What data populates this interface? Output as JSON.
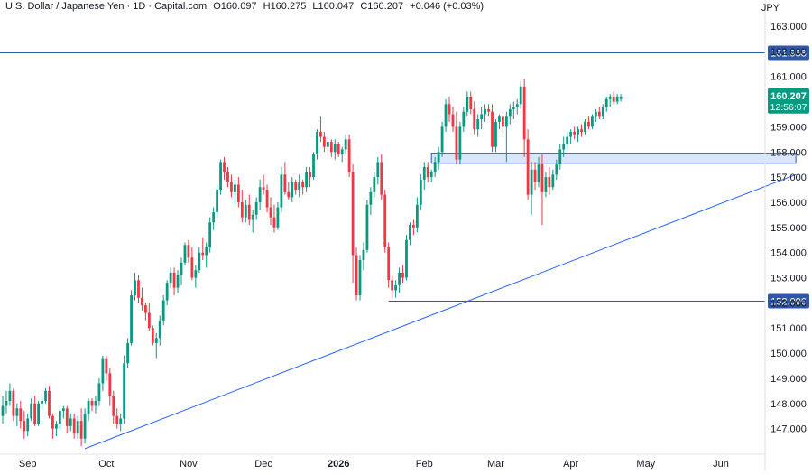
{
  "header": {
    "symbol": "U.S. Dollar / Japanese Yen · 1D · Capital.com",
    "open": "O160.097",
    "high": "H160.275",
    "low": "L160.047",
    "close": "C160.207",
    "change": "+0.046 (+0.03%)",
    "currency": "JPY"
  },
  "colors": {
    "up": "#089981",
    "down": "#f23645",
    "line": "#2962ff",
    "label_line": "#2f56a8",
    "zone_fill": "#dce6fb",
    "zone_stroke": "#2f56a8",
    "price_label": "#089981"
  },
  "price_tag": {
    "value": "160.207",
    "countdown": "12:56:07"
  },
  "chart_data": {
    "type": "candlestick",
    "ylim": [
      146.0,
      163.5
    ],
    "y_ticks": [
      "163.000",
      "162.000",
      "161.000",
      "160.000",
      "159.000",
      "158.000",
      "157.000",
      "156.000",
      "155.000",
      "154.000",
      "153.000",
      "152.000",
      "151.000",
      "150.000",
      "149.000",
      "148.000",
      "147.000"
    ],
    "x_ticks": [
      {
        "label": "Sep",
        "bar": 7
      },
      {
        "label": "Oct",
        "bar": 29
      },
      {
        "label": "Nov",
        "bar": 52
      },
      {
        "label": "Dec",
        "bar": 73
      },
      {
        "label": "2026",
        "bar": 94,
        "bold": true
      },
      {
        "label": "Feb",
        "bar": 118
      },
      {
        "label": "Mar",
        "bar": 138
      },
      {
        "label": "Apr",
        "bar": 159
      },
      {
        "label": "May",
        "bar": 180
      },
      {
        "label": "Jun",
        "bar": 201
      }
    ],
    "levels": [
      {
        "name": "resistance",
        "value": 161.958,
        "label": "161.958"
      },
      {
        "name": "support",
        "value": 152.096,
        "label": "152.096"
      }
    ],
    "zone": {
      "from_bar": 120,
      "to_bar": 222,
      "low": 157.55,
      "high": 157.95
    },
    "trendline": {
      "from_bar": 23,
      "from_value": 146.2,
      "to_bar": 222,
      "to_value": 157.1
    },
    "last_value": 160.207,
    "ohlc": [
      [
        147.5,
        148.3,
        147.2,
        147.9
      ],
      [
        147.9,
        148.5,
        147.6,
        148.1
      ],
      [
        148.1,
        148.8,
        147.9,
        148.5
      ],
      [
        148.5,
        148.6,
        147.3,
        147.5
      ],
      [
        147.5,
        148.0,
        147.1,
        147.8
      ],
      [
        147.8,
        148.1,
        147.0,
        147.3
      ],
      [
        147.3,
        147.7,
        146.6,
        146.9
      ],
      [
        146.9,
        147.6,
        146.7,
        147.4
      ],
      [
        147.4,
        148.2,
        147.3,
        148.0
      ],
      [
        148.0,
        148.3,
        147.1,
        147.2
      ],
      [
        147.2,
        148.1,
        147.1,
        148.0
      ],
      [
        148.0,
        148.3,
        147.8,
        148.1
      ],
      [
        148.1,
        148.6,
        148.0,
        148.5
      ],
      [
        148.5,
        148.7,
        147.4,
        147.5
      ],
      [
        147.5,
        147.6,
        146.6,
        147.0
      ],
      [
        147.0,
        147.3,
        146.7,
        147.2
      ],
      [
        147.2,
        147.8,
        147.0,
        147.7
      ],
      [
        147.7,
        147.9,
        147.4,
        147.8
      ],
      [
        147.8,
        147.9,
        146.8,
        147.1
      ],
      [
        147.1,
        147.6,
        146.9,
        147.4
      ],
      [
        147.4,
        147.6,
        146.6,
        146.8
      ],
      [
        146.8,
        147.5,
        146.6,
        147.3
      ],
      [
        147.3,
        147.8,
        146.3,
        146.6
      ],
      [
        146.6,
        147.8,
        146.4,
        147.6
      ],
      [
        147.6,
        148.2,
        147.3,
        148.1
      ],
      [
        148.1,
        148.2,
        147.7,
        147.9
      ],
      [
        147.9,
        148.3,
        147.6,
        148.1
      ],
      [
        148.1,
        149.0,
        147.9,
        148.8
      ],
      [
        148.8,
        149.9,
        148.5,
        149.8
      ],
      [
        149.8,
        149.9,
        148.9,
        149.2
      ],
      [
        149.2,
        149.4,
        147.9,
        148.3
      ],
      [
        148.3,
        148.5,
        147.2,
        147.5
      ],
      [
        147.5,
        147.8,
        147.0,
        147.2
      ],
      [
        147.2,
        147.6,
        146.9,
        147.4
      ],
      [
        147.4,
        149.9,
        147.2,
        149.6
      ],
      [
        149.6,
        150.6,
        149.4,
        150.4
      ],
      [
        150.4,
        152.5,
        150.3,
        152.3
      ],
      [
        152.3,
        153.2,
        152.1,
        152.9
      ],
      [
        152.9,
        153.1,
        152.0,
        152.2
      ],
      [
        152.2,
        152.6,
        151.7,
        151.9
      ],
      [
        151.9,
        152.0,
        151.3,
        151.6
      ],
      [
        151.6,
        152.0,
        150.9,
        151.0
      ],
      [
        151.0,
        151.1,
        150.3,
        150.4
      ],
      [
        150.4,
        150.8,
        149.8,
        150.6
      ],
      [
        150.6,
        151.5,
        150.3,
        151.3
      ],
      [
        151.3,
        152.3,
        151.1,
        152.1
      ],
      [
        152.1,
        152.9,
        151.9,
        152.8
      ],
      [
        152.8,
        153.4,
        152.6,
        153.2
      ],
      [
        153.2,
        153.4,
        152.3,
        152.6
      ],
      [
        152.6,
        153.3,
        152.4,
        153.1
      ],
      [
        153.1,
        153.8,
        152.7,
        153.6
      ],
      [
        153.6,
        154.4,
        153.5,
        154.3
      ],
      [
        154.3,
        154.5,
        153.6,
        153.8
      ],
      [
        153.8,
        154.2,
        152.9,
        153.0
      ],
      [
        153.0,
        153.5,
        152.6,
        153.3
      ],
      [
        153.3,
        154.2,
        153.2,
        154.0
      ],
      [
        154.0,
        154.6,
        153.7,
        153.9
      ],
      [
        153.9,
        154.4,
        153.4,
        154.2
      ],
      [
        154.2,
        155.4,
        154.0,
        155.2
      ],
      [
        155.2,
        155.8,
        154.9,
        155.6
      ],
      [
        155.6,
        156.7,
        155.4,
        156.5
      ],
      [
        156.5,
        157.7,
        156.3,
        157.6
      ],
      [
        157.6,
        157.8,
        156.9,
        157.2
      ],
      [
        157.2,
        157.4,
        156.6,
        156.8
      ],
      [
        156.8,
        157.1,
        156.2,
        156.4
      ],
      [
        156.4,
        156.9,
        155.9,
        156.7
      ],
      [
        156.7,
        157.0,
        155.8,
        156.0
      ],
      [
        156.0,
        156.5,
        155.2,
        155.4
      ],
      [
        155.4,
        156.1,
        155.2,
        155.9
      ],
      [
        155.9,
        156.3,
        155.1,
        155.3
      ],
      [
        155.3,
        155.7,
        154.8,
        155.5
      ],
      [
        155.5,
        156.2,
        155.3,
        156.0
      ],
      [
        156.0,
        156.9,
        155.7,
        156.6
      ],
      [
        156.6,
        157.1,
        156.3,
        156.5
      ],
      [
        156.5,
        156.7,
        155.6,
        155.8
      ],
      [
        155.8,
        156.2,
        155.1,
        155.4
      ],
      [
        155.4,
        155.9,
        154.8,
        155.0
      ],
      [
        155.0,
        156.0,
        154.9,
        155.8
      ],
      [
        155.8,
        157.4,
        155.6,
        157.1
      ],
      [
        157.1,
        157.6,
        156.3,
        156.4
      ],
      [
        156.4,
        156.8,
        156.1,
        156.2
      ],
      [
        156.2,
        157.0,
        156.0,
        156.8
      ],
      [
        156.8,
        156.9,
        156.3,
        156.5
      ],
      [
        156.5,
        157.1,
        156.2,
        156.8
      ],
      [
        156.8,
        156.9,
        156.3,
        156.6
      ],
      [
        156.6,
        157.4,
        156.4,
        157.2
      ],
      [
        157.2,
        157.4,
        156.6,
        157.0
      ],
      [
        157.0,
        158.0,
        156.9,
        157.9
      ],
      [
        157.9,
        158.9,
        157.7,
        158.8
      ],
      [
        158.8,
        159.4,
        158.4,
        158.6
      ],
      [
        158.6,
        158.8,
        158.0,
        158.2
      ],
      [
        158.2,
        158.6,
        157.9,
        158.4
      ],
      [
        158.4,
        158.5,
        157.8,
        158.0
      ],
      [
        158.0,
        158.5,
        157.7,
        158.3
      ],
      [
        158.3,
        158.4,
        157.8,
        157.9
      ],
      [
        157.9,
        158.2,
        157.6,
        158.1
      ],
      [
        158.1,
        158.7,
        157.9,
        158.5
      ],
      [
        158.5,
        158.7,
        157.0,
        157.2
      ],
      [
        157.2,
        157.5,
        152.8,
        153.9
      ],
      [
        153.9,
        154.2,
        152.1,
        152.3
      ],
      [
        152.3,
        153.9,
        152.1,
        153.7
      ],
      [
        153.7,
        154.4,
        153.3,
        154.1
      ],
      [
        154.1,
        156.1,
        154.0,
        155.9
      ],
      [
        155.9,
        156.6,
        155.5,
        156.4
      ],
      [
        156.4,
        157.2,
        156.2,
        157.0
      ],
      [
        157.0,
        157.8,
        156.7,
        157.6
      ],
      [
        157.6,
        157.9,
        156.1,
        156.3
      ],
      [
        156.3,
        156.5,
        154.0,
        154.2
      ],
      [
        154.2,
        154.4,
        152.6,
        152.9
      ],
      [
        152.9,
        153.1,
        152.2,
        152.5
      ],
      [
        152.5,
        152.9,
        152.2,
        152.7
      ],
      [
        152.7,
        153.4,
        152.4,
        153.2
      ],
      [
        153.2,
        153.5,
        152.8,
        153.0
      ],
      [
        153.0,
        154.7,
        152.9,
        154.5
      ],
      [
        154.5,
        155.2,
        154.3,
        155.1
      ],
      [
        155.1,
        155.3,
        154.7,
        155.0
      ],
      [
        155.0,
        156.2,
        154.8,
        155.9
      ],
      [
        155.9,
        157.1,
        155.7,
        156.9
      ],
      [
        156.9,
        157.6,
        156.5,
        157.4
      ],
      [
        157.4,
        157.6,
        156.8,
        157.0
      ],
      [
        157.0,
        157.3,
        156.8,
        157.2
      ],
      [
        157.2,
        157.8,
        157.0,
        157.6
      ],
      [
        157.6,
        158.2,
        157.3,
        158.0
      ],
      [
        158.0,
        159.2,
        157.8,
        159.0
      ],
      [
        159.0,
        160.1,
        158.8,
        159.9
      ],
      [
        159.9,
        160.2,
        159.2,
        159.5
      ],
      [
        159.5,
        159.8,
        158.8,
        159.0
      ],
      [
        159.0,
        159.6,
        157.5,
        157.7
      ],
      [
        157.7,
        159.2,
        157.5,
        159.0
      ],
      [
        159.0,
        159.8,
        158.8,
        159.6
      ],
      [
        159.6,
        160.4,
        159.4,
        160.2
      ],
      [
        160.2,
        160.4,
        159.5,
        159.7
      ],
      [
        159.7,
        160.0,
        158.7,
        158.9
      ],
      [
        158.9,
        159.5,
        158.6,
        159.3
      ],
      [
        159.3,
        159.8,
        158.9,
        159.5
      ],
      [
        159.5,
        159.9,
        159.2,
        159.7
      ],
      [
        159.7,
        159.9,
        159.4,
        159.6
      ],
      [
        159.6,
        159.9,
        158.0,
        158.2
      ],
      [
        158.2,
        159.3,
        158.0,
        159.2
      ],
      [
        159.2,
        159.5,
        158.9,
        159.4
      ],
      [
        159.4,
        159.6,
        158.8,
        159.0
      ],
      [
        159.0,
        159.6,
        157.6,
        159.4
      ],
      [
        159.4,
        159.9,
        159.1,
        159.7
      ],
      [
        159.7,
        160.0,
        159.3,
        159.8
      ],
      [
        159.8,
        160.1,
        159.5,
        159.9
      ],
      [
        159.9,
        160.8,
        159.7,
        160.6
      ],
      [
        160.6,
        160.9,
        157.8,
        158.5
      ],
      [
        158.5,
        158.9,
        156.1,
        156.3
      ],
      [
        156.3,
        157.6,
        155.5,
        157.3
      ],
      [
        157.3,
        157.6,
        156.5,
        156.8
      ],
      [
        156.8,
        157.8,
        156.6,
        157.5
      ],
      [
        157.5,
        157.9,
        155.1,
        156.4
      ],
      [
        156.4,
        157.2,
        156.2,
        157.0
      ],
      [
        157.0,
        157.4,
        156.3,
        156.6
      ],
      [
        156.6,
        157.3,
        156.5,
        157.1
      ],
      [
        157.1,
        157.7,
        156.9,
        157.5
      ],
      [
        157.5,
        158.3,
        157.3,
        158.1
      ],
      [
        158.1,
        158.6,
        157.8,
        158.3
      ],
      [
        158.3,
        158.8,
        158.1,
        158.6
      ],
      [
        158.6,
        158.9,
        158.3,
        158.8
      ],
      [
        158.8,
        159.0,
        158.5,
        158.7
      ],
      [
        158.7,
        159.0,
        158.4,
        158.9
      ],
      [
        158.9,
        159.1,
        158.6,
        158.8
      ],
      [
        158.8,
        159.3,
        158.7,
        159.2
      ],
      [
        159.2,
        159.4,
        158.9,
        159.0
      ],
      [
        159.0,
        159.5,
        158.9,
        159.4
      ],
      [
        159.4,
        159.7,
        159.2,
        159.6
      ],
      [
        159.6,
        159.8,
        159.3,
        159.4
      ],
      [
        159.4,
        159.9,
        159.3,
        159.8
      ],
      [
        159.8,
        160.2,
        159.6,
        160.1
      ],
      [
        160.1,
        160.3,
        159.8,
        160.2
      ],
      [
        160.2,
        160.4,
        159.9,
        160.0
      ],
      [
        160.0,
        160.3,
        159.9,
        160.2
      ],
      [
        160.1,
        160.3,
        160.0,
        160.2
      ]
    ]
  }
}
